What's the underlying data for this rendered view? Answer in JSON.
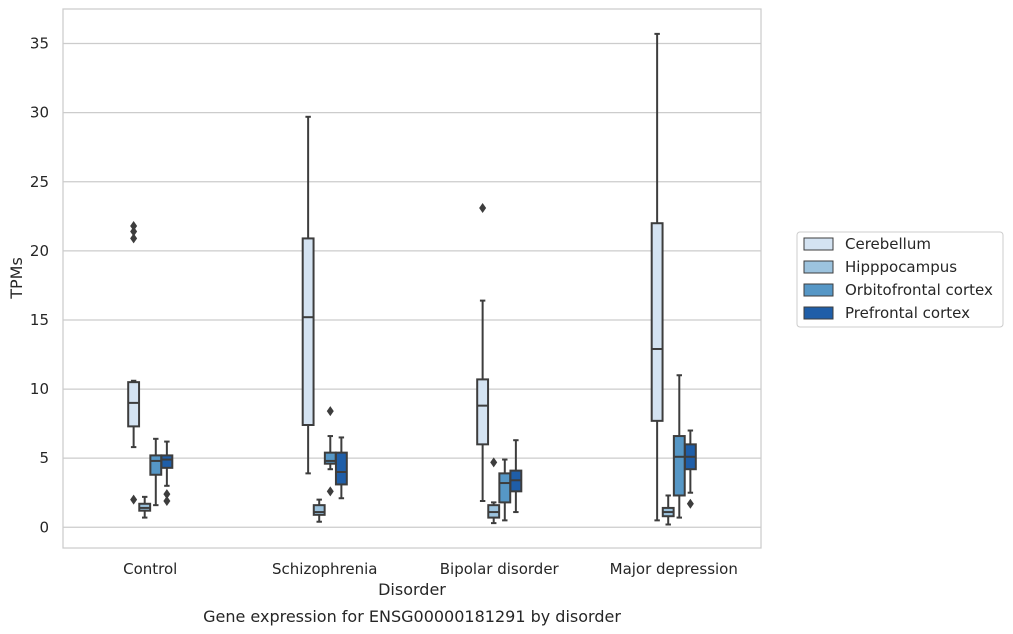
{
  "chart_data": {
    "type": "boxplot",
    "title": "Gene expression for ENSG00000181291 by disorder",
    "xlabel": "Disorder",
    "ylabel": "TPMs",
    "ylim": [
      -1.5,
      37.5
    ],
    "yticks": [
      0,
      5,
      10,
      15,
      20,
      25,
      30,
      35
    ],
    "grid": true,
    "legend_position": "right",
    "categories": [
      "Control",
      "Schizophrenia",
      "Bipolar disorder",
      "Major depression"
    ],
    "series": [
      {
        "name": "Cerebellum",
        "color": "#d4e3f2",
        "boxes": [
          {
            "whislo": 5.8,
            "q1": 7.3,
            "med": 9.0,
            "q3": 10.5,
            "whishi": 10.6,
            "fliers": [
              21.8,
              21.4,
              20.9,
              2.0
            ]
          },
          {
            "whislo": 3.9,
            "q1": 7.4,
            "med": 15.2,
            "q3": 20.9,
            "whishi": 29.7,
            "fliers": []
          },
          {
            "whislo": 1.9,
            "q1": 6.0,
            "med": 8.8,
            "q3": 10.7,
            "whishi": 16.4,
            "fliers": [
              23.1
            ]
          },
          {
            "whislo": 0.5,
            "q1": 7.7,
            "med": 12.9,
            "q3": 22.0,
            "whishi": 35.7,
            "fliers": []
          }
        ]
      },
      {
        "name": "Hipppocampus",
        "color": "#9cc3de",
        "boxes": [
          {
            "whislo": 0.7,
            "q1": 1.2,
            "med": 1.4,
            "q3": 1.7,
            "whishi": 2.2,
            "fliers": []
          },
          {
            "whislo": 0.4,
            "q1": 0.9,
            "med": 1.1,
            "q3": 1.6,
            "whishi": 2.0,
            "fliers": []
          },
          {
            "whislo": 0.3,
            "q1": 0.7,
            "med": 1.1,
            "q3": 1.6,
            "whishi": 1.8,
            "fliers": [
              4.7
            ]
          },
          {
            "whislo": 0.2,
            "q1": 0.8,
            "med": 1.1,
            "q3": 1.4,
            "whishi": 2.3,
            "fliers": []
          }
        ]
      },
      {
        "name": "Orbitofrontal cortex",
        "color": "#5697c6",
        "boxes": [
          {
            "whislo": 1.6,
            "q1": 3.8,
            "med": 4.8,
            "q3": 5.2,
            "whishi": 6.4,
            "fliers": []
          },
          {
            "whislo": 4.2,
            "q1": 4.6,
            "med": 4.8,
            "q3": 5.4,
            "whishi": 6.6,
            "fliers": [
              8.4,
              2.6
            ]
          },
          {
            "whislo": 0.5,
            "q1": 1.8,
            "med": 3.2,
            "q3": 3.9,
            "whishi": 4.9,
            "fliers": []
          },
          {
            "whislo": 0.7,
            "q1": 2.3,
            "med": 5.1,
            "q3": 6.6,
            "whishi": 11.0,
            "fliers": []
          }
        ]
      },
      {
        "name": "Prefrontal cortex",
        "color": "#1f5ea8",
        "boxes": [
          {
            "whislo": 3.0,
            "q1": 4.3,
            "med": 4.9,
            "q3": 5.2,
            "whishi": 6.2,
            "fliers": [
              2.4,
              1.9
            ]
          },
          {
            "whislo": 2.1,
            "q1": 3.1,
            "med": 4.0,
            "q3": 5.4,
            "whishi": 6.5,
            "fliers": []
          },
          {
            "whislo": 1.1,
            "q1": 2.6,
            "med": 3.4,
            "q3": 4.1,
            "whishi": 6.3,
            "fliers": []
          },
          {
            "whislo": 2.5,
            "q1": 4.2,
            "med": 5.1,
            "q3": 6.0,
            "whishi": 7.0,
            "fliers": [
              1.7
            ]
          }
        ]
      }
    ]
  }
}
